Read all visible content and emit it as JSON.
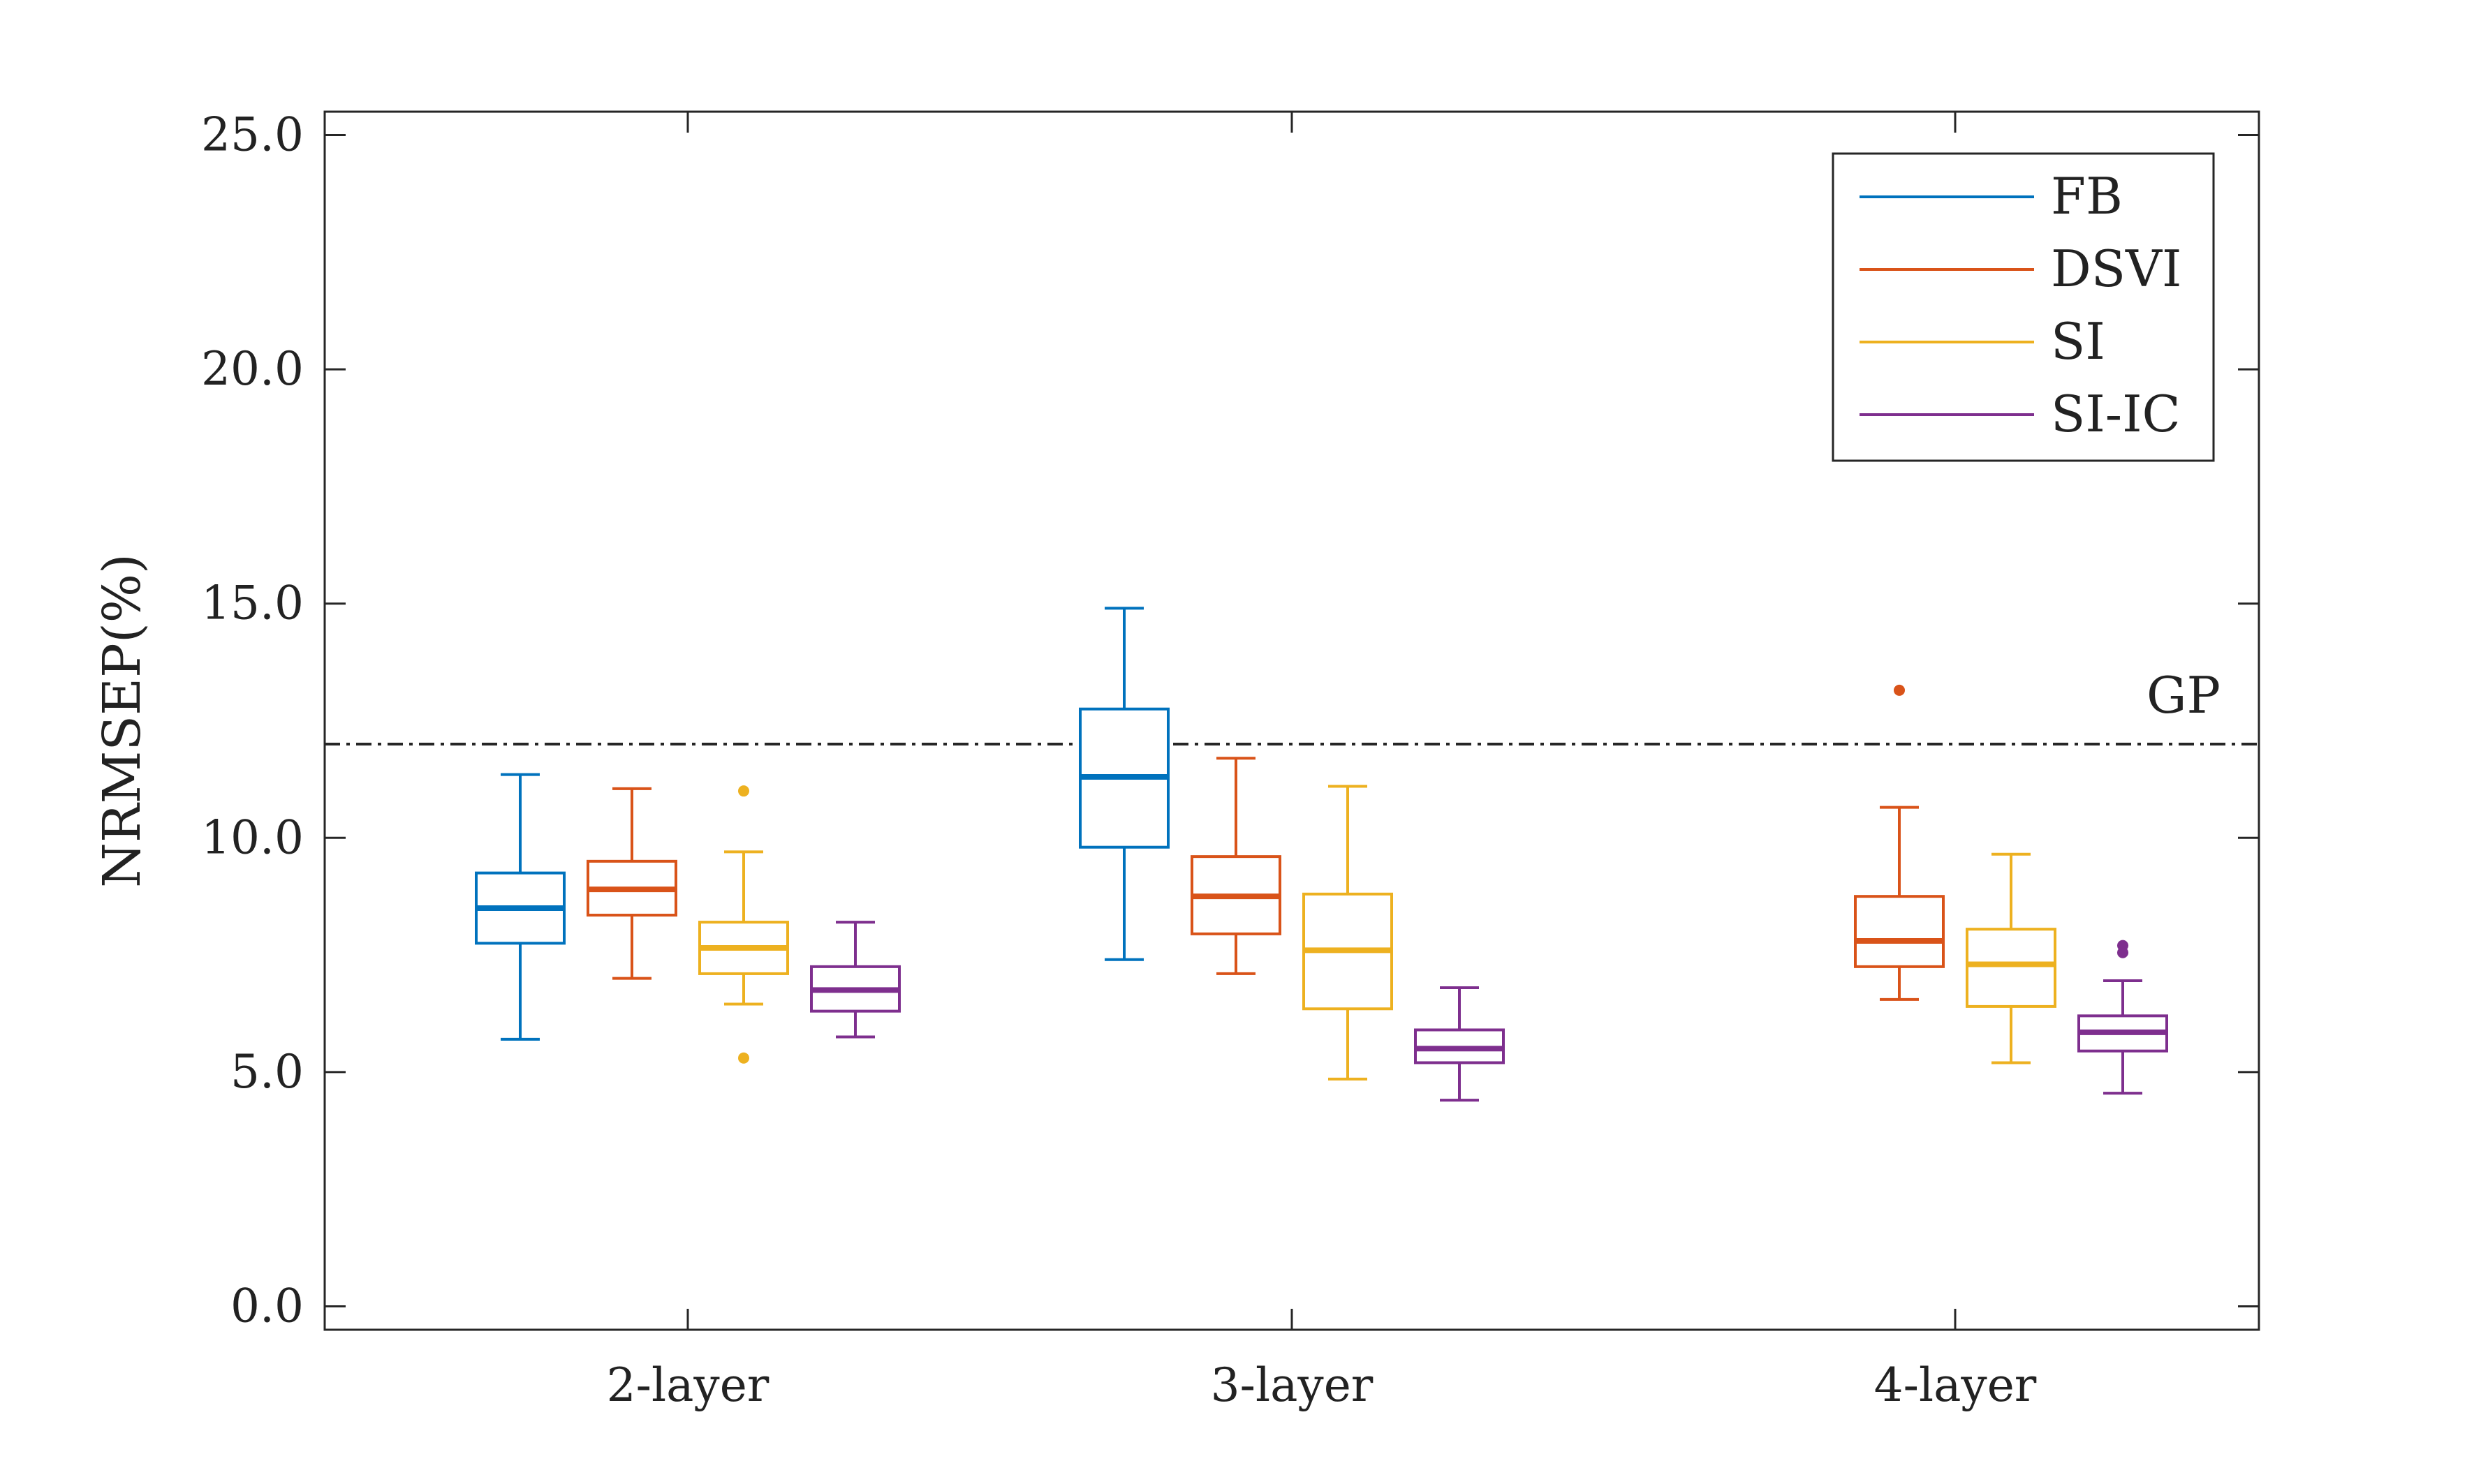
{
  "chart_data": {
    "type": "box",
    "title": "",
    "xlabel": "",
    "ylabel": "NRMSEP(%)",
    "ylim": [
      -0.5,
      25.5
    ],
    "yticks": [
      0,
      5,
      10,
      15,
      20,
      25
    ],
    "ytick_labels": [
      "0.0",
      "5.0",
      "10.0",
      "15.0",
      "20.0",
      "25.0"
    ],
    "categories": [
      "2-layer",
      "3-layer",
      "4-layer"
    ],
    "reference_line": {
      "label": "GP",
      "value": 12.0,
      "style": "dash-dot"
    },
    "legend_position": "top-right",
    "series": [
      {
        "name": "FB",
        "color": "#0072BD",
        "boxes": [
          {
            "category": "2-layer",
            "whisker_low": 5.7,
            "q1": 7.75,
            "median": 8.5,
            "q3": 9.25,
            "whisker_high": 11.35,
            "outliers": []
          },
          {
            "category": "3-layer",
            "whisker_low": 7.4,
            "q1": 9.8,
            "median": 11.3,
            "q3": 12.75,
            "whisker_high": 14.9,
            "outliers": []
          },
          null
        ]
      },
      {
        "name": "DSVI",
        "color": "#D95319",
        "boxes": [
          {
            "category": "2-layer",
            "whisker_low": 7.0,
            "q1": 8.35,
            "median": 8.9,
            "q3": 9.5,
            "whisker_high": 11.05,
            "outliers": []
          },
          {
            "category": "3-layer",
            "whisker_low": 7.1,
            "q1": 7.95,
            "median": 8.75,
            "q3": 9.6,
            "whisker_high": 11.7,
            "outliers": []
          },
          {
            "category": "4-layer",
            "whisker_low": 6.55,
            "q1": 7.25,
            "median": 7.8,
            "q3": 8.75,
            "whisker_high": 10.65,
            "outliers": [
              13.15
            ]
          }
        ]
      },
      {
        "name": "SI",
        "color": "#EDB120",
        "boxes": [
          {
            "category": "2-layer",
            "whisker_low": 6.45,
            "q1": 7.1,
            "median": 7.65,
            "q3": 8.2,
            "whisker_high": 9.7,
            "outliers": [
              11.0,
              5.3
            ]
          },
          {
            "category": "3-layer",
            "whisker_low": 4.85,
            "q1": 6.35,
            "median": 7.6,
            "q3": 8.8,
            "whisker_high": 11.1,
            "outliers": []
          },
          {
            "category": "4-layer",
            "whisker_low": 5.2,
            "q1": 6.4,
            "median": 7.3,
            "q3": 8.05,
            "whisker_high": 9.65,
            "outliers": []
          }
        ]
      },
      {
        "name": "SI-IC",
        "color": "#7E2F8E",
        "boxes": [
          {
            "category": "2-layer",
            "whisker_low": 5.75,
            "q1": 6.3,
            "median": 6.75,
            "q3": 7.25,
            "whisker_high": 8.2,
            "outliers": []
          },
          {
            "category": "3-layer",
            "whisker_low": 4.4,
            "q1": 5.2,
            "median": 5.5,
            "q3": 5.9,
            "whisker_high": 6.8,
            "outliers": []
          },
          {
            "category": "4-layer",
            "whisker_low": 4.55,
            "q1": 5.45,
            "median": 5.85,
            "q3": 6.2,
            "whisker_high": 6.95,
            "outliers": [
              7.55,
              7.7
            ]
          }
        ]
      }
    ]
  }
}
